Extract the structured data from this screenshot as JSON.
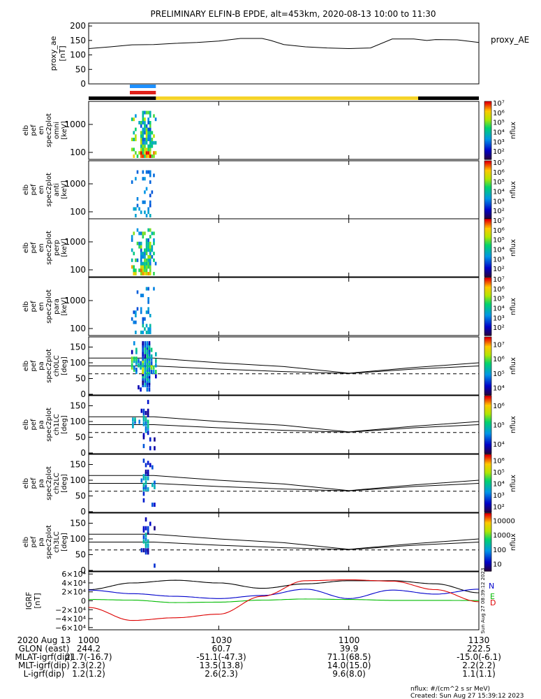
{
  "title": "PRELIMINARY ELFIN-B EPDE, alt=453km, 2020-08-13 10:00 to 11:30",
  "colors": {
    "blue_bar": "#1e90ff",
    "red_bar": "#e0201a",
    "sunlight": "#f5d328",
    "shadow": "#000000",
    "gsm_n": "#0000cc",
    "gsm_e": "#00bb00",
    "gsm_d": "#dd0000",
    "total": "#000000"
  },
  "proxy_ae": {
    "ylabel": [
      "proxy_ae",
      "[nT]"
    ],
    "legend": "proxy_AE",
    "ylim": [
      0,
      210
    ],
    "ticks": [
      "0",
      "50",
      "100",
      "150",
      "200"
    ],
    "tick_values": [
      0,
      50,
      100,
      150,
      200
    ],
    "chart_data": {
      "type": "line",
      "x_min": [
        0,
        5,
        10,
        15,
        20,
        25,
        30,
        35,
        40,
        42,
        45,
        50,
        55,
        60,
        65,
        70,
        75,
        78,
        80,
        85,
        90
      ],
      "y": [
        122,
        128,
        135,
        136,
        140,
        143,
        148,
        157,
        157,
        150,
        136,
        128,
        124,
        122,
        124,
        155,
        155,
        150,
        153,
        152,
        143
      ]
    }
  },
  "spec_panels": [
    {
      "ylabel": [
        "elb",
        "pef",
        "en",
        "spec2plot",
        "omni",
        "[keV]"
      ],
      "ticks": [
        "100",
        "1000"
      ],
      "cbar": {
        "label": "nflux",
        "ticks": [
          "10²",
          "10³",
          "10⁴",
          "10⁵",
          "10⁶",
          "10⁷"
        ],
        "min_exp": 1,
        "max_exp": 7
      }
    },
    {
      "ylabel": [
        "elb",
        "pef",
        "en",
        "spec2plot",
        "anti",
        "[keV]"
      ],
      "ticks": [
        "100",
        "1000"
      ],
      "cbar": {
        "label": "nflux",
        "ticks": [
          "10²",
          "10³",
          "10⁴",
          "10⁵",
          "10⁶",
          "10⁷"
        ],
        "min_exp": 1,
        "max_exp": 7
      }
    },
    {
      "ylabel": [
        "elb",
        "pef",
        "en",
        "spec2plot",
        "perp",
        "[keV]"
      ],
      "ticks": [
        "100",
        "1000"
      ],
      "cbar": {
        "label": "nflux",
        "ticks": [
          "10²",
          "10³",
          "10⁴",
          "10⁵",
          "10⁶",
          "10⁷"
        ],
        "min_exp": 1,
        "max_exp": 7
      }
    },
    {
      "ylabel": [
        "elb",
        "pef",
        "en",
        "spec2plot",
        "para",
        "[keV]"
      ],
      "ticks": [
        "100",
        "1000"
      ],
      "cbar": {
        "label": "nflux",
        "ticks": [
          "10²",
          "10³",
          "10⁴",
          "10⁵",
          "10⁶",
          "10⁷"
        ],
        "min_exp": 1,
        "max_exp": 7
      }
    }
  ],
  "pa_panels": [
    {
      "ylabel": [
        "elb",
        "pef",
        "pa",
        "spec2plot",
        "ch0LC",
        "[deg]"
      ],
      "ticks": [
        "0",
        "50",
        "100",
        "150"
      ],
      "cbar": {
        "label": "nflux",
        "ticks": [
          "10⁴",
          "10⁵",
          "10⁶",
          "10⁷"
        ]
      }
    },
    {
      "ylabel": [
        "elb",
        "pef",
        "pa",
        "spec2plot",
        "ch1LC",
        "[deg]"
      ],
      "ticks": [
        "0",
        "50",
        "100",
        "150"
      ],
      "cbar": {
        "label": "nflux",
        "ticks": [
          "10⁴",
          "10⁵",
          "10⁶"
        ]
      }
    },
    {
      "ylabel": [
        "elb",
        "pef",
        "pa",
        "spec2plot",
        "ch2LC",
        "[deg]"
      ],
      "ticks": [
        "0",
        "50",
        "100",
        "150"
      ],
      "cbar": {
        "label": "nflux",
        "ticks": [
          "10²",
          "10³",
          "10⁴",
          "10⁵",
          "10⁶"
        ]
      }
    },
    {
      "ylabel": [
        "elb",
        "pef",
        "pa",
        "spec2plot",
        "ch3LC",
        "[deg]"
      ],
      "ticks": [
        "0",
        "50",
        "100",
        "150"
      ],
      "cbar": {
        "label": "nflux",
        "ticks": [
          "10",
          "100",
          "1000",
          "10000"
        ]
      }
    }
  ],
  "igrf": {
    "ylabel": [
      "IGRF",
      "[nT]"
    ],
    "ticks": [
      "−6×10⁴",
      "−4×10⁴",
      "−2×10⁴",
      "0",
      "2×10⁴",
      "4×10⁴",
      "6×10⁴"
    ],
    "legend": [
      "N",
      "E",
      "D"
    ],
    "side_text": "Sun Aug 27 08:39:12 2023",
    "chart_data": {
      "type": "line",
      "x_min": [
        0,
        10,
        20,
        30,
        40,
        50,
        60,
        70,
        80,
        90
      ],
      "series": [
        {
          "values": [
            25000,
            40000,
            46000,
            40000,
            28000,
            38000,
            45000,
            45000,
            38000,
            18000
          ]
        },
        {
          "values": [
            24000,
            16000,
            10000,
            5000,
            12000,
            26000,
            5000,
            24000,
            15000,
            26000
          ]
        },
        {
          "values": [
            3000,
            1500,
            -4000,
            -3000,
            1500,
            4000,
            3000,
            1000,
            1000,
            500
          ]
        },
        {
          "values": [
            -15000,
            -44000,
            -38000,
            -30000,
            10000,
            45000,
            47000,
            44000,
            25000,
            -2000
          ]
        }
      ]
    }
  },
  "xaxis": {
    "ticks": [
      "1000",
      "1030",
      "1100",
      "1130"
    ],
    "rows": [
      {
        "label": "2020 Aug 13",
        "values": [
          "1000",
          "1030",
          "1100",
          "1130"
        ]
      },
      {
        "label": "GLON (east)",
        "values": [
          "244.2",
          "60.7",
          "39.9",
          "222.5"
        ]
      },
      {
        "label": "MLAT-igrf(dip)",
        "values": [
          "21.7(-16.7)",
          "-51.1(-47.3)",
          "71.1(68.5)",
          "-15.0(-6.1)"
        ]
      },
      {
        "label": "MLT-igrf(dip)",
        "values": [
          "2.3(2.2)",
          "13.5(13.8)",
          "14.0(15.0)",
          "2.2(2.2)"
        ]
      },
      {
        "label": "L-igrf(dip)",
        "values": [
          "1.2(1.2)",
          "2.6(2.3)",
          "9.6(8.0)",
          "1.1(1.1)"
        ]
      }
    ]
  },
  "footer": {
    "units": "nflux: #/(cm^2 s sr MeV)",
    "created": "Created: Sun Aug 27 15:39:12 2023"
  }
}
